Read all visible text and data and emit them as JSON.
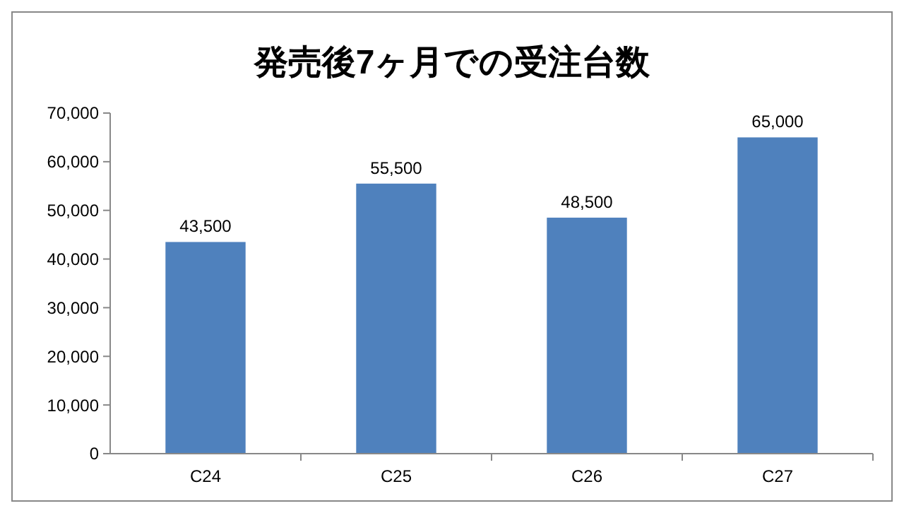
{
  "chart_data": {
    "type": "bar",
    "title": "発売後7ヶ月での受注台数",
    "categories": [
      "C24",
      "C25",
      "C26",
      "C27"
    ],
    "values": [
      43500,
      55500,
      48500,
      65000
    ],
    "color": "#4f81bd",
    "ylim": [
      0,
      70000
    ],
    "yticks": [
      {
        "value": 0,
        "label": "0"
      },
      {
        "value": 10000,
        "label": "10,000"
      },
      {
        "value": 20000,
        "label": "20,000"
      },
      {
        "value": 30000,
        "label": "30,000"
      },
      {
        "value": 40000,
        "label": "40,000"
      },
      {
        "value": 50000,
        "label": "50,000"
      },
      {
        "value": 60000,
        "label": "60,000"
      },
      {
        "value": 70000,
        "label": "70,000"
      }
    ],
    "value_labels": [
      "43,500",
      "55,500",
      "48,500",
      "65,000"
    ],
    "grid": false
  }
}
